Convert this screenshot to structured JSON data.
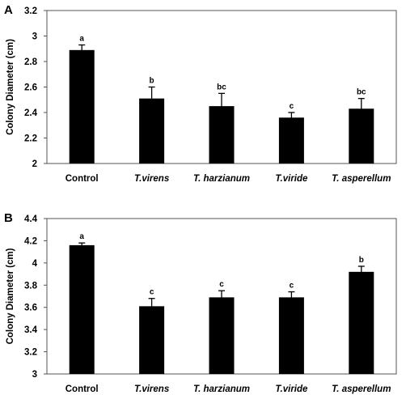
{
  "chart_data": [
    {
      "type": "bar",
      "panel_label": "A",
      "ylabel": "Colony Diameter (cm)",
      "ylim": [
        2,
        3.2
      ],
      "yticks": [
        "2",
        "2.2",
        "2.4",
        "2.6",
        "2.8",
        "3",
        "3.2"
      ],
      "categories": [
        "Control",
        "T.virens",
        "T. harzianum",
        "T.viride",
        "T. asperellum"
      ],
      "italic_categories": [
        false,
        true,
        true,
        true,
        true
      ],
      "values": [
        2.89,
        2.51,
        2.45,
        2.36,
        2.43
      ],
      "errors": [
        0.04,
        0.09,
        0.1,
        0.04,
        0.08
      ],
      "letters": [
        "a",
        "b",
        "bc",
        "c",
        "bc"
      ],
      "grid": false,
      "bar_color": "#000000"
    },
    {
      "type": "bar",
      "panel_label": "B",
      "ylabel": "Colony Diameter (cm)",
      "ylim": [
        3,
        4.4
      ],
      "yticks": [
        "3",
        "3.2",
        "3.4",
        "3.6",
        "3.8",
        "4",
        "4.2",
        "4.4"
      ],
      "categories": [
        "Control",
        "T.virens",
        "T. harzianum",
        "T.viride",
        "T. asperellum"
      ],
      "italic_categories": [
        false,
        true,
        true,
        true,
        true
      ],
      "values": [
        4.16,
        3.61,
        3.69,
        3.69,
        3.92
      ],
      "errors": [
        0.02,
        0.07,
        0.06,
        0.05,
        0.05
      ],
      "letters": [
        "a",
        "c",
        "c",
        "c",
        "b"
      ],
      "grid": false,
      "bar_color": "#000000"
    }
  ]
}
